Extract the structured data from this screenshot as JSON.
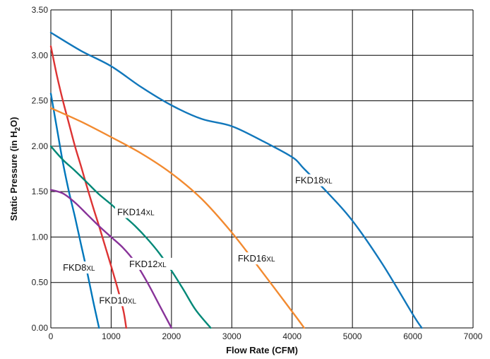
{
  "chart_data": {
    "type": "line",
    "xlabel": "Flow Rate (CFM)",
    "ylabel": {
      "prefix": "Static Pressure (in H",
      "sub": "2",
      "suffix": "O)"
    },
    "xlim": [
      0,
      7000
    ],
    "ylim": [
      0,
      3.5
    ],
    "grid": true,
    "x_ticks": [
      "0",
      "1000",
      "2000",
      "3000",
      "4000",
      "5000",
      "6000",
      "7000"
    ],
    "y_ticks": [
      "0.00",
      "0.50",
      "1.00",
      "1.50",
      "2.00",
      "2.50",
      "3.00",
      "3.50"
    ],
    "series": [
      {
        "name": "FKD8",
        "suffix": "XL",
        "color": "#0077bb",
        "x": [
          0,
          100,
          200,
          300,
          400,
          500,
          600,
          700,
          800
        ],
        "y": [
          2.58,
          2.2,
          1.82,
          1.5,
          1.22,
          0.92,
          0.62,
          0.3,
          0.0
        ]
      },
      {
        "name": "FKD10",
        "suffix": "XL",
        "color": "#dd3333",
        "x": [
          0,
          100,
          200,
          300,
          400,
          500,
          600,
          700,
          800,
          900,
          1000,
          1100,
          1200,
          1250
        ],
        "y": [
          3.1,
          2.78,
          2.5,
          2.25,
          2.0,
          1.78,
          1.55,
          1.33,
          1.12,
          0.9,
          0.68,
          0.45,
          0.2,
          0.0
        ]
      },
      {
        "name": "FKD12",
        "suffix": "XL",
        "color": "#883399",
        "x": [
          0,
          200,
          400,
          600,
          800,
          1000,
          1200,
          1400,
          1600,
          1800,
          2000
        ],
        "y": [
          1.52,
          1.48,
          1.38,
          1.25,
          1.12,
          1.0,
          0.88,
          0.72,
          0.5,
          0.25,
          0.0
        ]
      },
      {
        "name": "FKD14",
        "suffix": "XL",
        "color": "#008877",
        "x": [
          0,
          200,
          400,
          600,
          800,
          1000,
          1200,
          1400,
          1600,
          1800,
          2000,
          2200,
          2400,
          2650
        ],
        "y": [
          2.0,
          1.85,
          1.73,
          1.6,
          1.47,
          1.36,
          1.24,
          1.12,
          0.98,
          0.82,
          0.63,
          0.42,
          0.2,
          0.0
        ]
      },
      {
        "name": "FKD16",
        "suffix": "XL",
        "color": "#f28a30",
        "x": [
          0,
          500,
          1000,
          1500,
          2000,
          2500,
          3000,
          3500,
          4000,
          4200
        ],
        "y": [
          2.42,
          2.27,
          2.1,
          1.92,
          1.7,
          1.42,
          1.05,
          0.62,
          0.18,
          0.0
        ]
      },
      {
        "name": "FKD18",
        "suffix": "XL",
        "color": "#1177bb",
        "x": [
          0,
          500,
          1000,
          1500,
          2000,
          2500,
          3000,
          3500,
          4000,
          4200,
          4600,
          5000,
          5500,
          6000,
          6150
        ],
        "y": [
          3.25,
          3.05,
          2.88,
          2.65,
          2.45,
          2.3,
          2.22,
          2.06,
          1.88,
          1.75,
          1.48,
          1.18,
          0.7,
          0.15,
          0.0
        ]
      }
    ]
  }
}
